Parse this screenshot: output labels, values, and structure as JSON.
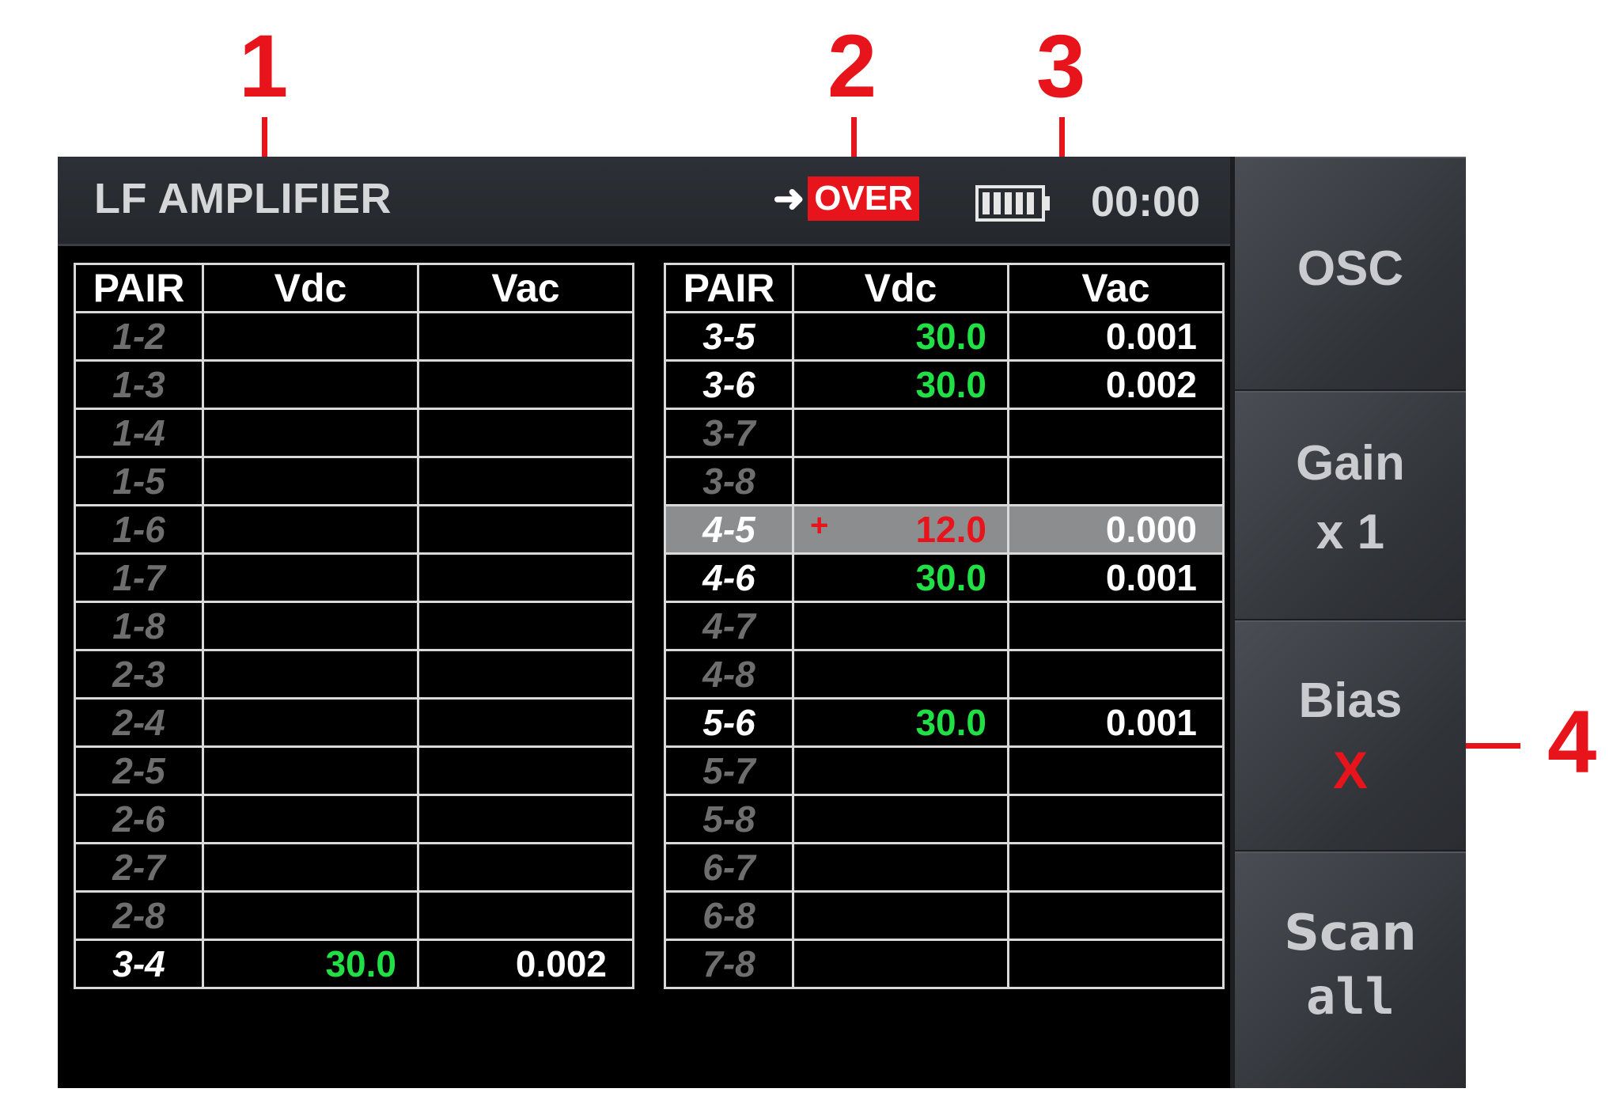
{
  "callouts": [
    "1",
    "2",
    "3",
    "4"
  ],
  "header": {
    "title": "LF AMPLIFIER",
    "status_arrow": "➜",
    "status_label": "OVER",
    "battery_icon": "battery-full-icon",
    "time": "00:00"
  },
  "table_left": {
    "headers": [
      "PAIR",
      "Vdc",
      "Vac"
    ],
    "rows": [
      {
        "pair": "1-2",
        "vdc": "",
        "vac": ""
      },
      {
        "pair": "1-3",
        "vdc": "",
        "vac": ""
      },
      {
        "pair": "1-4",
        "vdc": "",
        "vac": ""
      },
      {
        "pair": "1-5",
        "vdc": "",
        "vac": ""
      },
      {
        "pair": "1-6",
        "vdc": "",
        "vac": ""
      },
      {
        "pair": "1-7",
        "vdc": "",
        "vac": ""
      },
      {
        "pair": "1-8",
        "vdc": "",
        "vac": ""
      },
      {
        "pair": "2-3",
        "vdc": "",
        "vac": ""
      },
      {
        "pair": "2-4",
        "vdc": "",
        "vac": ""
      },
      {
        "pair": "2-5",
        "vdc": "",
        "vac": ""
      },
      {
        "pair": "2-6",
        "vdc": "",
        "vac": ""
      },
      {
        "pair": "2-7",
        "vdc": "",
        "vac": ""
      },
      {
        "pair": "2-8",
        "vdc": "",
        "vac": ""
      },
      {
        "pair": "3-4",
        "vdc": "30.0",
        "vac": "0.002"
      }
    ]
  },
  "table_right": {
    "headers": [
      "PAIR",
      "Vdc",
      "Vac"
    ],
    "rows": [
      {
        "pair": "3-5",
        "vdc": "30.0",
        "vac": "0.001"
      },
      {
        "pair": "3-6",
        "vdc": "30.0",
        "vac": "0.002"
      },
      {
        "pair": "3-7",
        "vdc": "",
        "vac": ""
      },
      {
        "pair": "3-8",
        "vdc": "",
        "vac": ""
      },
      {
        "pair": "4-5",
        "vdc": "12.0",
        "vac": "0.000",
        "sign": "+"
      },
      {
        "pair": "4-6",
        "vdc": "30.0",
        "vac": "0.001"
      },
      {
        "pair": "4-7",
        "vdc": "",
        "vac": ""
      },
      {
        "pair": "4-8",
        "vdc": "",
        "vac": ""
      },
      {
        "pair": "5-6",
        "vdc": "30.0",
        "vac": "0.001"
      },
      {
        "pair": "5-7",
        "vdc": "",
        "vac": ""
      },
      {
        "pair": "5-8",
        "vdc": "",
        "vac": ""
      },
      {
        "pair": "6-7",
        "vdc": "",
        "vac": ""
      },
      {
        "pair": "6-8",
        "vdc": "",
        "vac": ""
      },
      {
        "pair": "7-8",
        "vdc": "",
        "vac": ""
      }
    ]
  },
  "side_buttons": {
    "osc": {
      "line1": "OSC"
    },
    "gain": {
      "line1": "Gain",
      "line2": "x 1"
    },
    "bias": {
      "line1": "Bias",
      "line2": "X"
    },
    "scan": {
      "line1": "Scan",
      "line2": "all"
    }
  },
  "colors": {
    "annotation_red": "#e8141c",
    "value_green": "#20e045",
    "selected_row": "#8b8d8f"
  }
}
